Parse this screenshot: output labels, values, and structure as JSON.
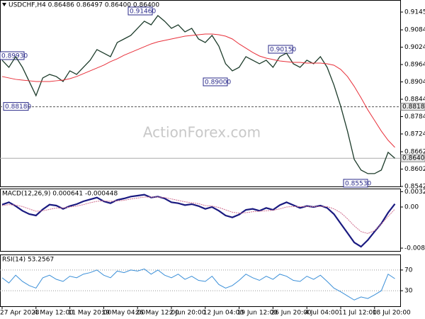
{
  "chart_data": [
    {
      "type": "line",
      "title": "USDCHF,H4  0.86486 0.86497 0.86400 0.86400",
      "watermark": "ActionForex.com",
      "categories": [
        "27 Apr 2023",
        null,
        null,
        null,
        null,
        "4 May 12:00",
        null,
        null,
        null,
        null,
        "11 May 20:00",
        null,
        null,
        null,
        null,
        "19 May 04:00",
        null,
        null,
        null,
        null,
        "26 May 12:00",
        null,
        null,
        null,
        null,
        "2 Jun 20:00",
        null,
        null,
        null,
        null,
        "12 Jun 04:00",
        null,
        null,
        null,
        null,
        "19 Jun 12:00",
        null,
        null,
        null,
        null,
        "26 Jun 20:00",
        null,
        null,
        null,
        null,
        "4 Jul 04:00",
        null,
        null,
        null,
        null,
        "11 Jul 12:00",
        null,
        null,
        null,
        null,
        "18 Jul 20:00",
        null,
        null,
        null
      ],
      "series": [
        {
          "color": "#1c3b2a",
          "values": [
            0.89789,
            0.89544,
            0.89912,
            0.89544,
            0.89054,
            0.88564,
            0.89177,
            0.89299,
            0.89226,
            0.89054,
            0.89422,
            0.89299,
            0.89544,
            0.89789,
            0.90157,
            0.90034,
            0.89912,
            0.90402,
            0.90524,
            0.90647,
            0.90892,
            0.91137,
            0.91014,
            0.91333,
            0.91137,
            0.90892,
            0.91014,
            0.90769,
            0.90892,
            0.90524,
            0.90402,
            0.90647,
            0.90279,
            0.89667,
            0.89422,
            0.89544,
            0.89912,
            0.89789,
            0.89667,
            0.89789,
            0.89544,
            0.89912,
            0.90034,
            0.89667,
            0.89544,
            0.89789,
            0.89667,
            0.89912,
            0.89544,
            0.88932,
            0.88197,
            0.87339,
            0.86359,
            0.85992,
            0.85869,
            0.85869,
            0.85992,
            0.86604,
            0.864
          ]
        },
        {
          "color": "#e8303a",
          "values": [
            0.89226,
            0.89177,
            0.89128,
            0.89103,
            0.89079,
            0.89054,
            0.89054,
            0.89054,
            0.89079,
            0.89103,
            0.89152,
            0.89226,
            0.89324,
            0.89422,
            0.8952,
            0.89618,
            0.8974,
            0.89838,
            0.89961,
            0.90059,
            0.90157,
            0.90255,
            0.90353,
            0.90426,
            0.90475,
            0.90524,
            0.90573,
            0.90622,
            0.90647,
            0.90671,
            0.90696,
            0.90696,
            0.90671,
            0.90622,
            0.90524,
            0.90353,
            0.90206,
            0.90059,
            0.89936,
            0.89863,
            0.89814,
            0.89765,
            0.8974,
            0.89716,
            0.89716,
            0.89691,
            0.89691,
            0.89691,
            0.89667,
            0.89618,
            0.89471,
            0.89226,
            0.88883,
            0.88491,
            0.88074,
            0.87707,
            0.87339,
            0.87021,
            0.86776
          ]
        }
      ],
      "ylim": [
        0.85425,
        0.91872
      ],
      "yticks": [
        0.91455,
        {
          "value": 0.9084,
          "label": "0.90840"
        },
        {
          "value": 0.9024,
          "label": "0.90240"
        },
        {
          "value": 0.8964,
          "label": "0.89640"
        },
        {
          "value": 0.8904,
          "label": "0.89040"
        },
        {
          "value": 0.8844,
          "label": "0.88440"
        },
        {
          "value": 0.8784,
          "label": "0.87840"
        },
        {
          "value": 0.8724,
          "label": "0.87240"
        },
        0.86625,
        0.86025,
        0.85425
      ],
      "hlines": [
        {
          "value": 0.8818,
          "label": "0.88180"
        },
        {
          "value": 0.864,
          "label": "0.86400"
        }
      ],
      "annotations": [
        "0.89930",
        "0.91460",
        "0.90150",
        "0.89000",
        "0.85530"
      ]
    },
    {
      "type": "line",
      "title": "MACD(12,26,9) 0.000641 -0.000448",
      "series": [
        {
          "color": "#1a1a80",
          "values": [
            0.0005,
            0.001,
            0.0002,
            -0.0008,
            -0.0015,
            -0.0018,
            -0.0005,
            0.0005,
            0.0003,
            -0.0004,
            0.0002,
            0.0006,
            0.0012,
            0.0016,
            0.002,
            0.0012,
            0.0008,
            0.0015,
            0.0018,
            0.0022,
            0.0024,
            0.0026,
            0.002,
            0.0022,
            0.0018,
            0.001,
            0.0008,
            0.0004,
            0.0006,
            0.0002,
            -0.0004,
            0,
            -0.0008,
            -0.0018,
            -0.0022,
            -0.0016,
            -0.0006,
            -0.0004,
            -0.0008,
            -0.0002,
            -0.0006,
            0.0004,
            0.001,
            0.0004,
            -0.0002,
            0.0002,
            0,
            0.0003,
            -0.0002,
            -0.0015,
            -0.0035,
            -0.0055,
            -0.0075,
            -0.0084,
            -0.007,
            -0.0052,
            -0.0035,
            -0.0012,
            0.000641
          ]
        },
        {
          "color": "#d07090",
          "values": [
            0.0003,
            0.0005,
            0.0004,
            0.0001,
            -0.0004,
            -0.0009,
            -0.0008,
            -0.0005,
            -0.0002,
            -0.0002,
            0,
            0.0002,
            0.0005,
            0.0009,
            0.0012,
            0.0013,
            0.0012,
            0.0013,
            0.0014,
            0.0017,
            0.0019,
            0.0021,
            0.0021,
            0.0021,
            0.002,
            0.0017,
            0.0014,
            0.0011,
            0.0009,
            0.0007,
            0.0003,
            0.0002,
            -0.0001,
            -0.0006,
            -0.0011,
            -0.0013,
            -0.0012,
            -0.001,
            -0.0009,
            -0.0008,
            -0.0007,
            -0.0004,
            0,
            0.0001,
            0.0001,
            0.0001,
            0.0001,
            0.0001,
            0.0001,
            -0.0004,
            -0.0012,
            -0.0025,
            -0.004,
            -0.0052,
            -0.0056,
            -0.005,
            -0.0036,
            -0.002,
            -0.000448
          ]
        }
      ],
      "ylim": [
        -0.0093,
        0.0039
      ],
      "yticks": [
        0.003242,
        {
          "value": 0,
          "label": "0.00"
        },
        -0.008703
      ]
    },
    {
      "type": "line",
      "title": "RSI(14) 53.2567",
      "series": [
        {
          "color": "#3a8fd8",
          "values": [
            55,
            45,
            60,
            48,
            40,
            35,
            55,
            60,
            52,
            48,
            58,
            55,
            62,
            65,
            70,
            60,
            55,
            68,
            65,
            70,
            68,
            72,
            62,
            70,
            60,
            55,
            62,
            52,
            58,
            50,
            48,
            58,
            42,
            35,
            40,
            50,
            62,
            55,
            50,
            58,
            52,
            62,
            58,
            50,
            48,
            58,
            52,
            60,
            48,
            35,
            28,
            20,
            12,
            18,
            15,
            22,
            30,
            62,
            53.2567
          ]
        }
      ],
      "ylim": [
        0,
        100
      ],
      "yticks": [
        70,
        30
      ]
    }
  ]
}
